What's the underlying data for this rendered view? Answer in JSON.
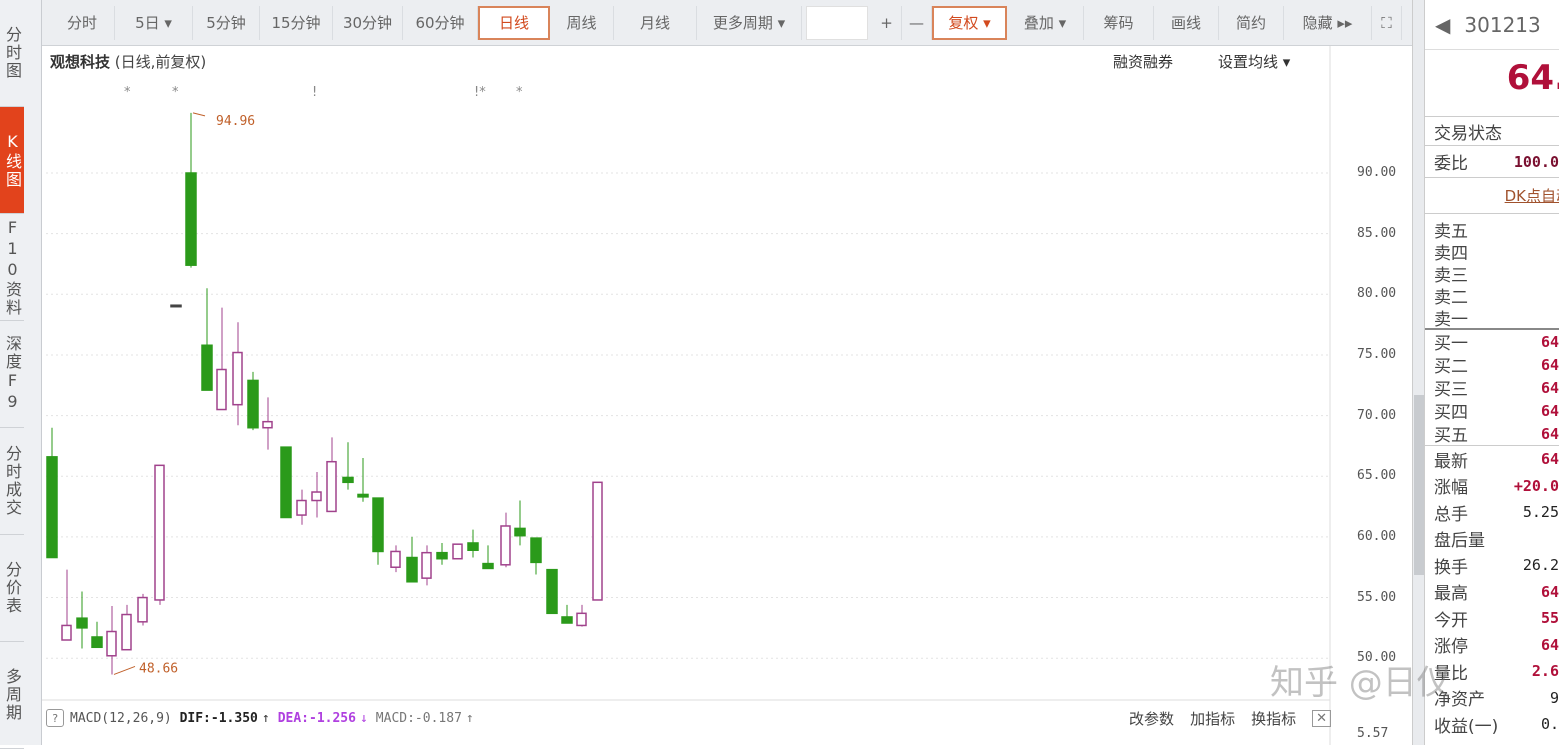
{
  "sidebar": {
    "tabs": [
      "分时图",
      "K线图",
      "F10资料",
      "深度F9",
      "分时成交",
      "分价表",
      "多周期"
    ],
    "active": 1
  },
  "toolbar": {
    "items": [
      "分时",
      "5日 ▾",
      "5分钟",
      "15分钟",
      "30分钟",
      "60分钟",
      "日线",
      "周线",
      "月线",
      "更多周期 ▾",
      "",
      "+",
      "—",
      "复权 ▾",
      "叠加 ▾",
      "筹码",
      "画线",
      "简约",
      "隐藏 ▸▸",
      "⛶"
    ],
    "active_period": "日线",
    "active_option": "复权 ▾"
  },
  "chart": {
    "stock_name": "观想科技",
    "mode": "(日线,前复权)",
    "links": {
      "margin": "融资融券",
      "ma_setting": "设置均线 ▾"
    },
    "event_markers": [
      "*",
      "*",
      "!",
      "!*",
      "*"
    ],
    "y_ticks": [
      "90.00",
      "85.00",
      "80.00",
      "75.00",
      "70.00",
      "65.00",
      "60.00",
      "55.00",
      "50.00"
    ],
    "macd_axis": "5.57",
    "annotations": {
      "high": "94.96",
      "low": "48.66"
    },
    "colors": {
      "up": "#a0428c",
      "down": "#2b9a1a",
      "grid": "#e3e3e3"
    }
  },
  "chart_data": {
    "type": "candlestick",
    "ylim": [
      48,
      96
    ],
    "candles": [
      {
        "o": 66.6,
        "h": 69.0,
        "l": 58.3,
        "c": 58.3
      },
      {
        "o": 51.5,
        "h": 57.3,
        "l": 51.5,
        "c": 52.7
      },
      {
        "o": 53.3,
        "h": 55.5,
        "l": 50.8,
        "c": 52.5
      },
      {
        "o": 51.75,
        "h": 53.0,
        "l": 50.9,
        "c": 50.9
      },
      {
        "o": 50.2,
        "h": 54.3,
        "l": 48.66,
        "c": 52.2
      },
      {
        "o": 50.7,
        "h": 54.4,
        "l": 50.7,
        "c": 53.6
      },
      {
        "o": 53.0,
        "h": 55.3,
        "l": 52.7,
        "c": 55.0
      },
      {
        "o": 54.8,
        "h": 65.9,
        "l": 54.4,
        "c": 65.9
      },
      {
        "o": 79.1,
        "h": 79.1,
        "l": 79.1,
        "c": 79.1
      },
      {
        "o": 90.0,
        "h": 94.96,
        "l": 82.2,
        "c": 82.4
      },
      {
        "o": 75.8,
        "h": 80.5,
        "l": 72.1,
        "c": 72.1
      },
      {
        "o": 70.5,
        "h": 78.9,
        "l": 70.5,
        "c": 73.8
      },
      {
        "o": 70.9,
        "h": 77.7,
        "l": 69.2,
        "c": 75.2
      },
      {
        "o": 72.9,
        "h": 73.6,
        "l": 68.8,
        "c": 69.0
      },
      {
        "o": 69.0,
        "h": 71.5,
        "l": 67.2,
        "c": 69.5
      },
      {
        "o": 67.4,
        "h": 67.4,
        "l": 61.6,
        "c": 61.6
      },
      {
        "o": 61.8,
        "h": 63.9,
        "l": 61.0,
        "c": 63.0
      },
      {
        "o": 63.0,
        "h": 65.35,
        "l": 61.6,
        "c": 63.7
      },
      {
        "o": 62.1,
        "h": 68.2,
        "l": 62.1,
        "c": 66.2
      },
      {
        "o": 64.9,
        "h": 67.8,
        "l": 63.9,
        "c": 64.5
      },
      {
        "o": 63.5,
        "h": 66.5,
        "l": 62.9,
        "c": 63.3
      },
      {
        "o": 63.2,
        "h": 63.2,
        "l": 57.7,
        "c": 58.8
      },
      {
        "o": 57.5,
        "h": 59.3,
        "l": 57.1,
        "c": 58.8
      },
      {
        "o": 58.3,
        "h": 60.0,
        "l": 56.3,
        "c": 56.3
      },
      {
        "o": 56.6,
        "h": 59.3,
        "l": 56.0,
        "c": 58.7
      },
      {
        "o": 58.7,
        "h": 59.5,
        "l": 57.7,
        "c": 58.2
      },
      {
        "o": 58.2,
        "h": 59.4,
        "l": 58.2,
        "c": 59.4
      },
      {
        "o": 59.5,
        "h": 60.6,
        "l": 58.3,
        "c": 58.9
      },
      {
        "o": 57.8,
        "h": 59.3,
        "l": 57.4,
        "c": 57.4
      },
      {
        "o": 57.7,
        "h": 62.0,
        "l": 57.5,
        "c": 60.9
      },
      {
        "o": 60.7,
        "h": 63.0,
        "l": 59.3,
        "c": 60.1
      },
      {
        "o": 59.9,
        "h": 59.9,
        "l": 56.9,
        "c": 57.9
      },
      {
        "o": 57.3,
        "h": 57.3,
        "l": 53.7,
        "c": 53.7
      },
      {
        "o": 53.4,
        "h": 54.4,
        "l": 52.9,
        "c": 52.9
      },
      {
        "o": 52.7,
        "h": 54.4,
        "l": 52.6,
        "c": 53.7
      },
      {
        "o": 54.8,
        "h": 64.5,
        "l": 54.8,
        "c": 64.5
      }
    ]
  },
  "macd": {
    "help": "?",
    "name": "MACD(12,26,9)",
    "dif": "DIF:-1.350",
    "dif_arrow": "↑",
    "dea": "DEA:-1.256",
    "dea_arrow": "↓",
    "macd": "MACD:-0.187",
    "macd_arrow": "↑",
    "actions": [
      "改参数",
      "加指标",
      "换指标"
    ],
    "close": "✕"
  },
  "quote": {
    "code": "301213",
    "price": "64.",
    "status_label": "交易状态",
    "weibi_label": "委比",
    "weibi": "100.0",
    "dk_link": "DK点自动",
    "asks": [
      "卖五",
      "卖四",
      "卖三",
      "卖二",
      "卖一"
    ],
    "bids": [
      {
        "l": "买一",
        "v": "64"
      },
      {
        "l": "买二",
        "v": "64"
      },
      {
        "l": "买三",
        "v": "64"
      },
      {
        "l": "买四",
        "v": "64"
      },
      {
        "l": "买五",
        "v": "64"
      }
    ],
    "stats": [
      {
        "l": "最新",
        "v": "64",
        "red": true
      },
      {
        "l": "涨幅",
        "v": "+20.0",
        "red": true
      },
      {
        "l": "总手",
        "v": "5.25",
        "red": false
      },
      {
        "l": "盘后量",
        "v": "",
        "red": false
      },
      {
        "l": "换手",
        "v": "26.2",
        "red": false
      },
      {
        "l": "最高",
        "v": "64",
        "red": true
      },
      {
        "l": "今开",
        "v": "55",
        "red": true
      },
      {
        "l": "涨停",
        "v": "64",
        "red": true
      },
      {
        "l": "量比",
        "v": "2.6",
        "red": true
      },
      {
        "l": "净资产",
        "v": "9",
        "red": false
      },
      {
        "l": "收益(一)",
        "v": "0.",
        "red": false
      }
    ]
  },
  "watermark": "知乎 @日仪"
}
